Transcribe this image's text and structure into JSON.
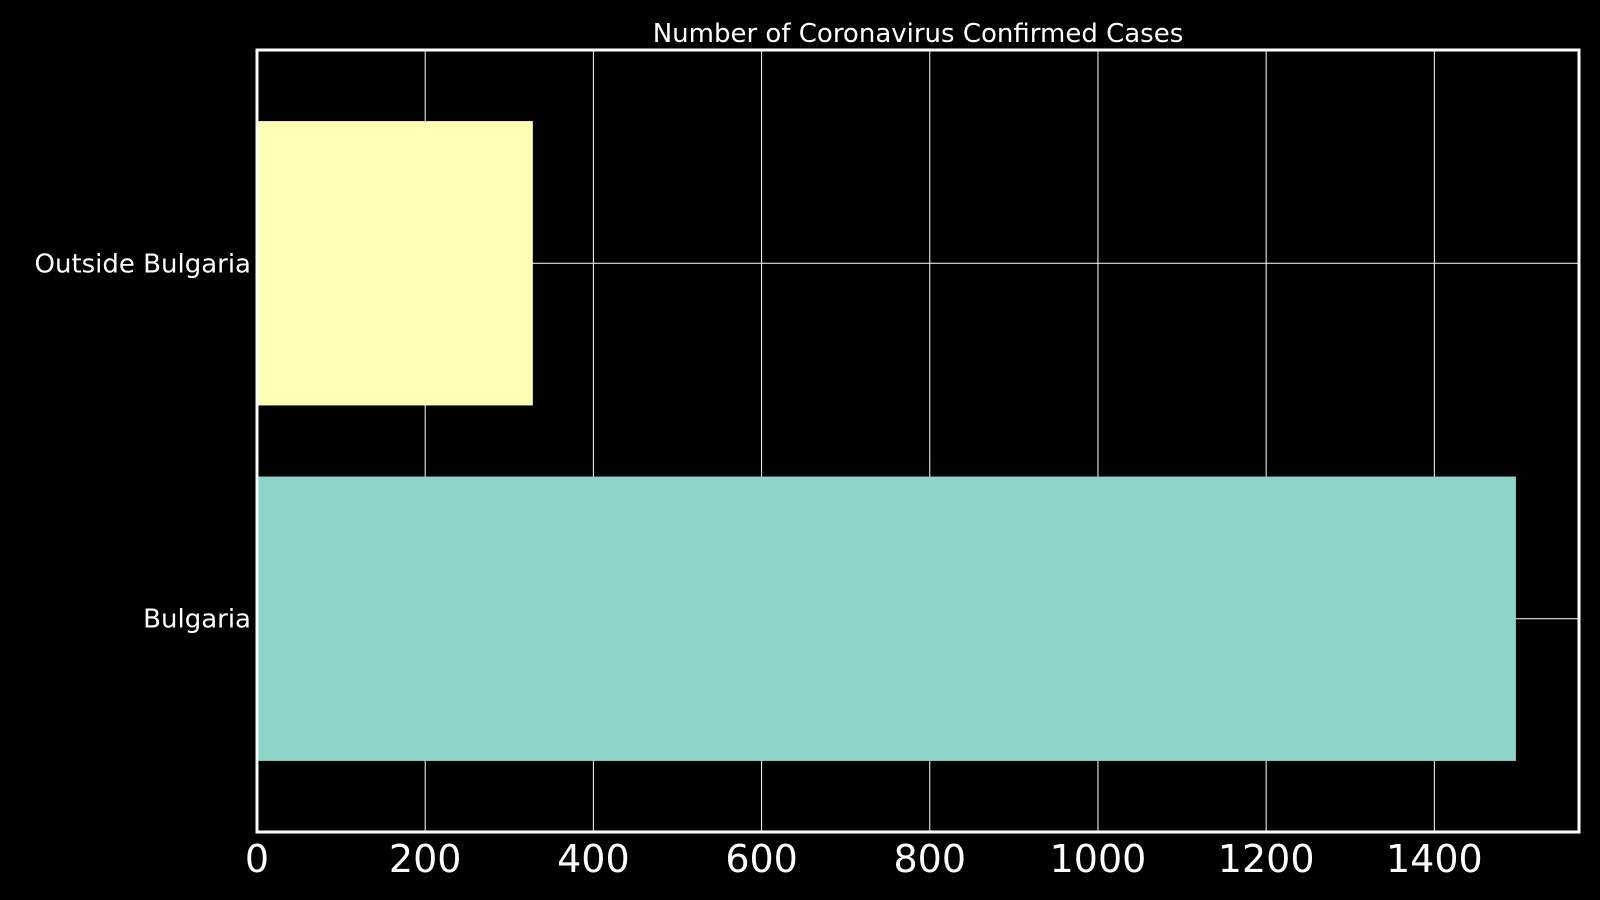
{
  "chart_data": {
    "type": "bar",
    "orientation": "horizontal",
    "title": "Number of Coronavirus Confirmed Cases",
    "xlabel": "",
    "ylabel": "",
    "categories": [
      "Bulgaria",
      "Outside Bulgaria"
    ],
    "values": [
      1497,
      328
    ],
    "bar_colors": [
      "#8dd3c7",
      "#ffffb3"
    ],
    "xlim": [
      0,
      1572
    ],
    "xticks": [
      0,
      200,
      400,
      600,
      800,
      1000,
      1200,
      1400
    ],
    "grid": true,
    "background": "#000000",
    "foreground": "#ffffff"
  }
}
